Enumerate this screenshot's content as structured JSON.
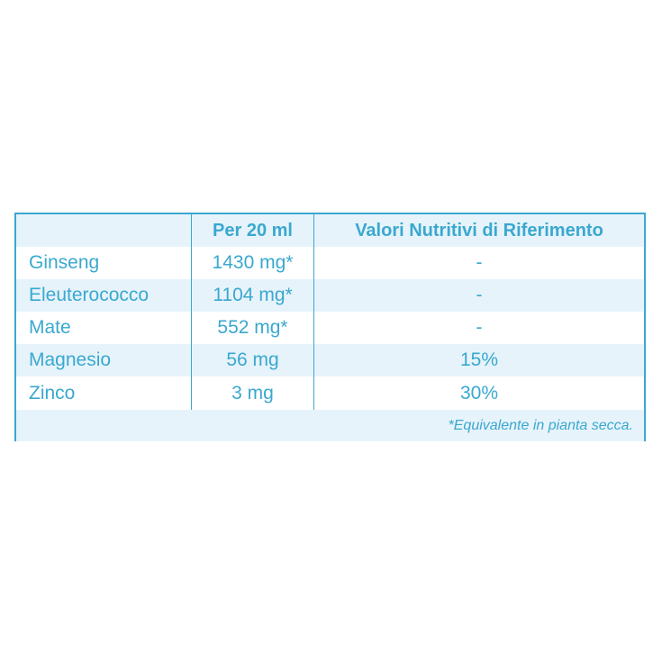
{
  "table": {
    "header": {
      "col1": "",
      "col2": "Per 20 ml",
      "col3": "Valori Nutritivi di Riferimento"
    },
    "rows": [
      {
        "name": "Ginseng",
        "amount": "1430 mg*",
        "ref": "-"
      },
      {
        "name": "Eleuterococco",
        "amount": "1104 mg*",
        "ref": "-"
      },
      {
        "name": "Mate",
        "amount": "552 mg*",
        "ref": "-"
      },
      {
        "name": "Magnesio",
        "amount": "56 mg",
        "ref": "15%"
      },
      {
        "name": "Zinco",
        "amount": "3 mg",
        "ref": "30%"
      }
    ],
    "footnote": "*Equivalente in pianta secca."
  },
  "colors": {
    "accent": "#3aa8d0",
    "shade": "#e6f3fa"
  }
}
